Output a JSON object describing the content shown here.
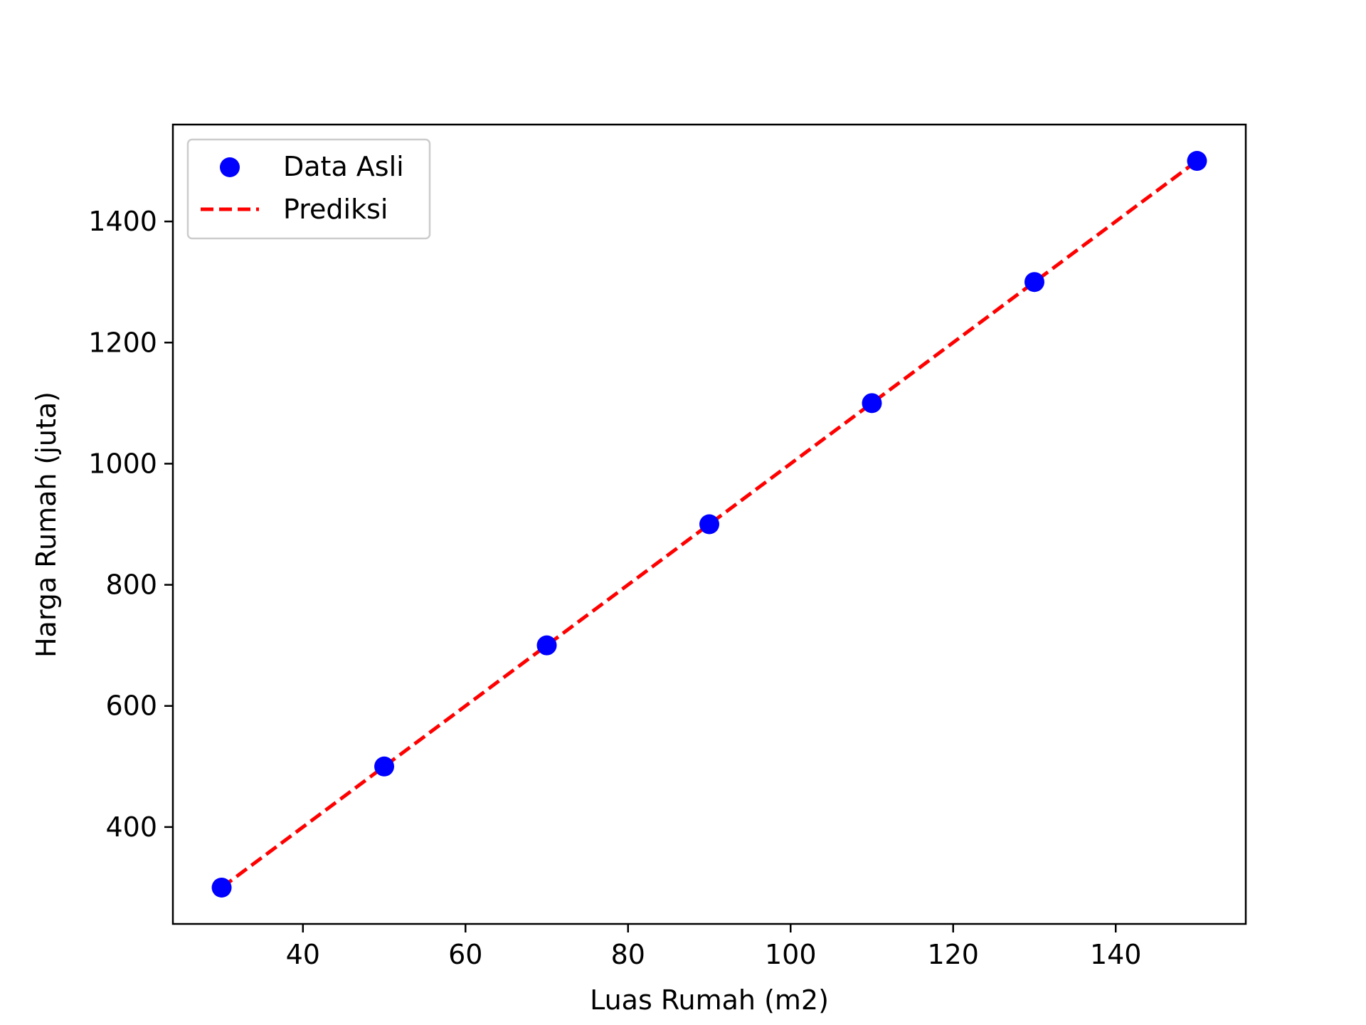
{
  "chart_data": {
    "type": "scatter",
    "title": "",
    "xlabel": "Luas Rumah (m2)",
    "ylabel": "Harga Rumah (juta)",
    "xlim": [
      24,
      156
    ],
    "ylim": [
      240,
      1560
    ],
    "xticks": [
      40,
      60,
      80,
      100,
      120,
      140
    ],
    "yticks": [
      400,
      600,
      800,
      1000,
      1200,
      1400
    ],
    "grid": false,
    "legend_position": "top-left",
    "series": [
      {
        "name": "Data Asli",
        "kind": "scatter",
        "color": "#0000ff",
        "x": [
          30,
          50,
          70,
          90,
          110,
          130,
          150
        ],
        "y": [
          300,
          500,
          700,
          900,
          1100,
          1300,
          1500
        ]
      },
      {
        "name": "Prediksi",
        "kind": "line",
        "style": "dashed",
        "color": "#ff0000",
        "x": [
          30,
          50,
          70,
          90,
          110,
          130,
          150
        ],
        "y": [
          300,
          500,
          700,
          900,
          1100,
          1300,
          1500
        ]
      }
    ]
  }
}
